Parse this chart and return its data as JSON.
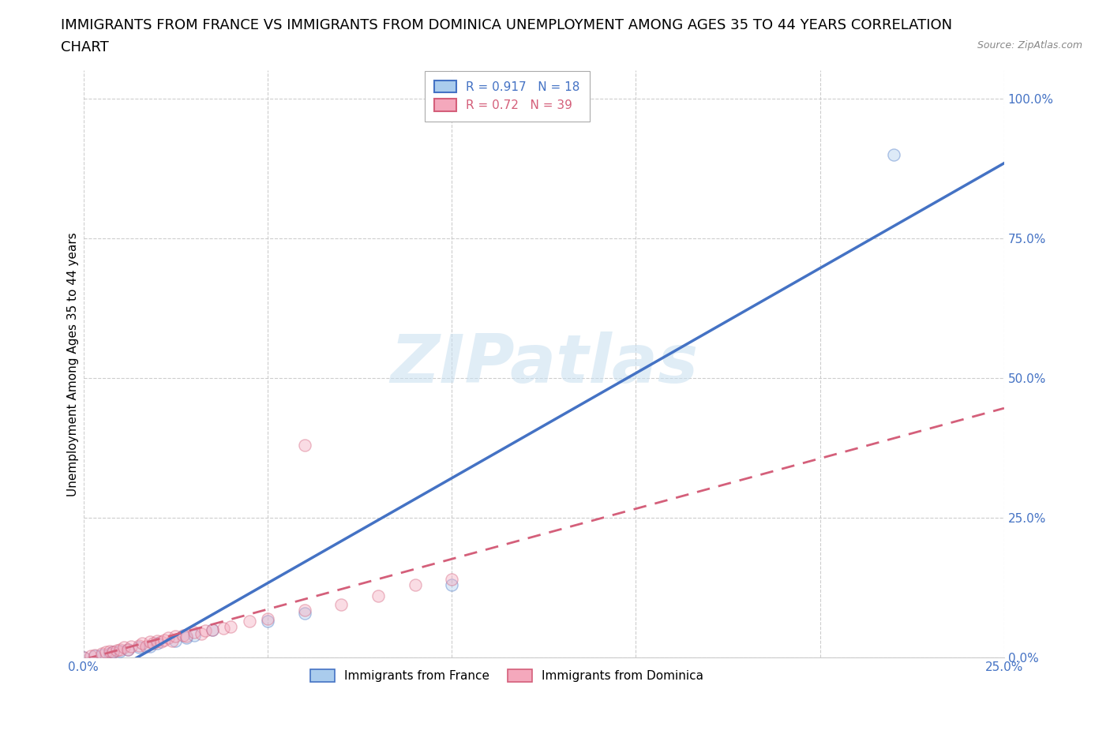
{
  "title_line1": "IMMIGRANTS FROM FRANCE VS IMMIGRANTS FROM DOMINICA UNEMPLOYMENT AMONG AGES 35 TO 44 YEARS CORRELATION",
  "title_line2": "CHART",
  "source_text": "Source: ZipAtlas.com",
  "ylabel": "Unemployment Among Ages 35 to 44 years",
  "france_R": 0.917,
  "france_N": 18,
  "dominica_R": 0.72,
  "dominica_N": 39,
  "france_color": "#aacced",
  "france_line_color": "#4472c4",
  "dominica_color": "#f4a8bc",
  "dominica_line_color": "#d45f7a",
  "france_scatter_x": [
    0.0,
    0.003,
    0.005,
    0.007,
    0.008,
    0.01,
    0.012,
    0.015,
    0.018,
    0.02,
    0.025,
    0.028,
    0.03,
    0.035,
    0.05,
    0.06,
    0.1,
    0.22
  ],
  "france_scatter_y": [
    0.0,
    0.003,
    0.005,
    0.007,
    0.01,
    0.012,
    0.015,
    0.018,
    0.02,
    0.025,
    0.03,
    0.035,
    0.04,
    0.05,
    0.065,
    0.08,
    0.13,
    0.9
  ],
  "dominica_scatter_x": [
    0.0,
    0.002,
    0.003,
    0.005,
    0.006,
    0.007,
    0.008,
    0.009,
    0.01,
    0.011,
    0.012,
    0.013,
    0.015,
    0.016,
    0.017,
    0.018,
    0.019,
    0.02,
    0.021,
    0.022,
    0.023,
    0.024,
    0.025,
    0.027,
    0.028,
    0.03,
    0.032,
    0.033,
    0.035,
    0.038,
    0.04,
    0.045,
    0.05,
    0.06,
    0.07,
    0.08,
    0.09,
    0.1,
    0.06
  ],
  "dominica_scatter_y": [
    0.0,
    0.003,
    0.005,
    0.007,
    0.01,
    0.012,
    0.01,
    0.013,
    0.015,
    0.018,
    0.015,
    0.02,
    0.022,
    0.025,
    0.02,
    0.028,
    0.025,
    0.03,
    0.028,
    0.032,
    0.035,
    0.03,
    0.038,
    0.04,
    0.038,
    0.045,
    0.042,
    0.048,
    0.05,
    0.052,
    0.055,
    0.065,
    0.07,
    0.085,
    0.095,
    0.11,
    0.13,
    0.14,
    0.38
  ],
  "xlim": [
    0.0,
    0.25
  ],
  "ylim": [
    0.0,
    1.05
  ],
  "yticks": [
    0.0,
    0.25,
    0.5,
    0.75,
    1.0
  ],
  "xticks": [
    0.0,
    0.05,
    0.1,
    0.15,
    0.2,
    0.25
  ],
  "ytick_labels": [
    "0.0%",
    "25.0%",
    "50.0%",
    "75.0%",
    "100.0%"
  ],
  "xtick_labels_show": [
    "0.0%",
    "",
    "",
    "",
    "",
    "25.0%"
  ],
  "watermark_text": "ZIPatlas",
  "title_fontsize": 13,
  "axis_label_fontsize": 11,
  "tick_fontsize": 11,
  "legend_fontsize": 11,
  "scatter_size": 120,
  "scatter_alpha": 0.4,
  "background_color": "#ffffff",
  "grid_color": "#c8c8c8",
  "tick_color": "#4472c4",
  "france_legend": "Immigrants from France",
  "dominica_legend": "Immigrants from Dominica"
}
